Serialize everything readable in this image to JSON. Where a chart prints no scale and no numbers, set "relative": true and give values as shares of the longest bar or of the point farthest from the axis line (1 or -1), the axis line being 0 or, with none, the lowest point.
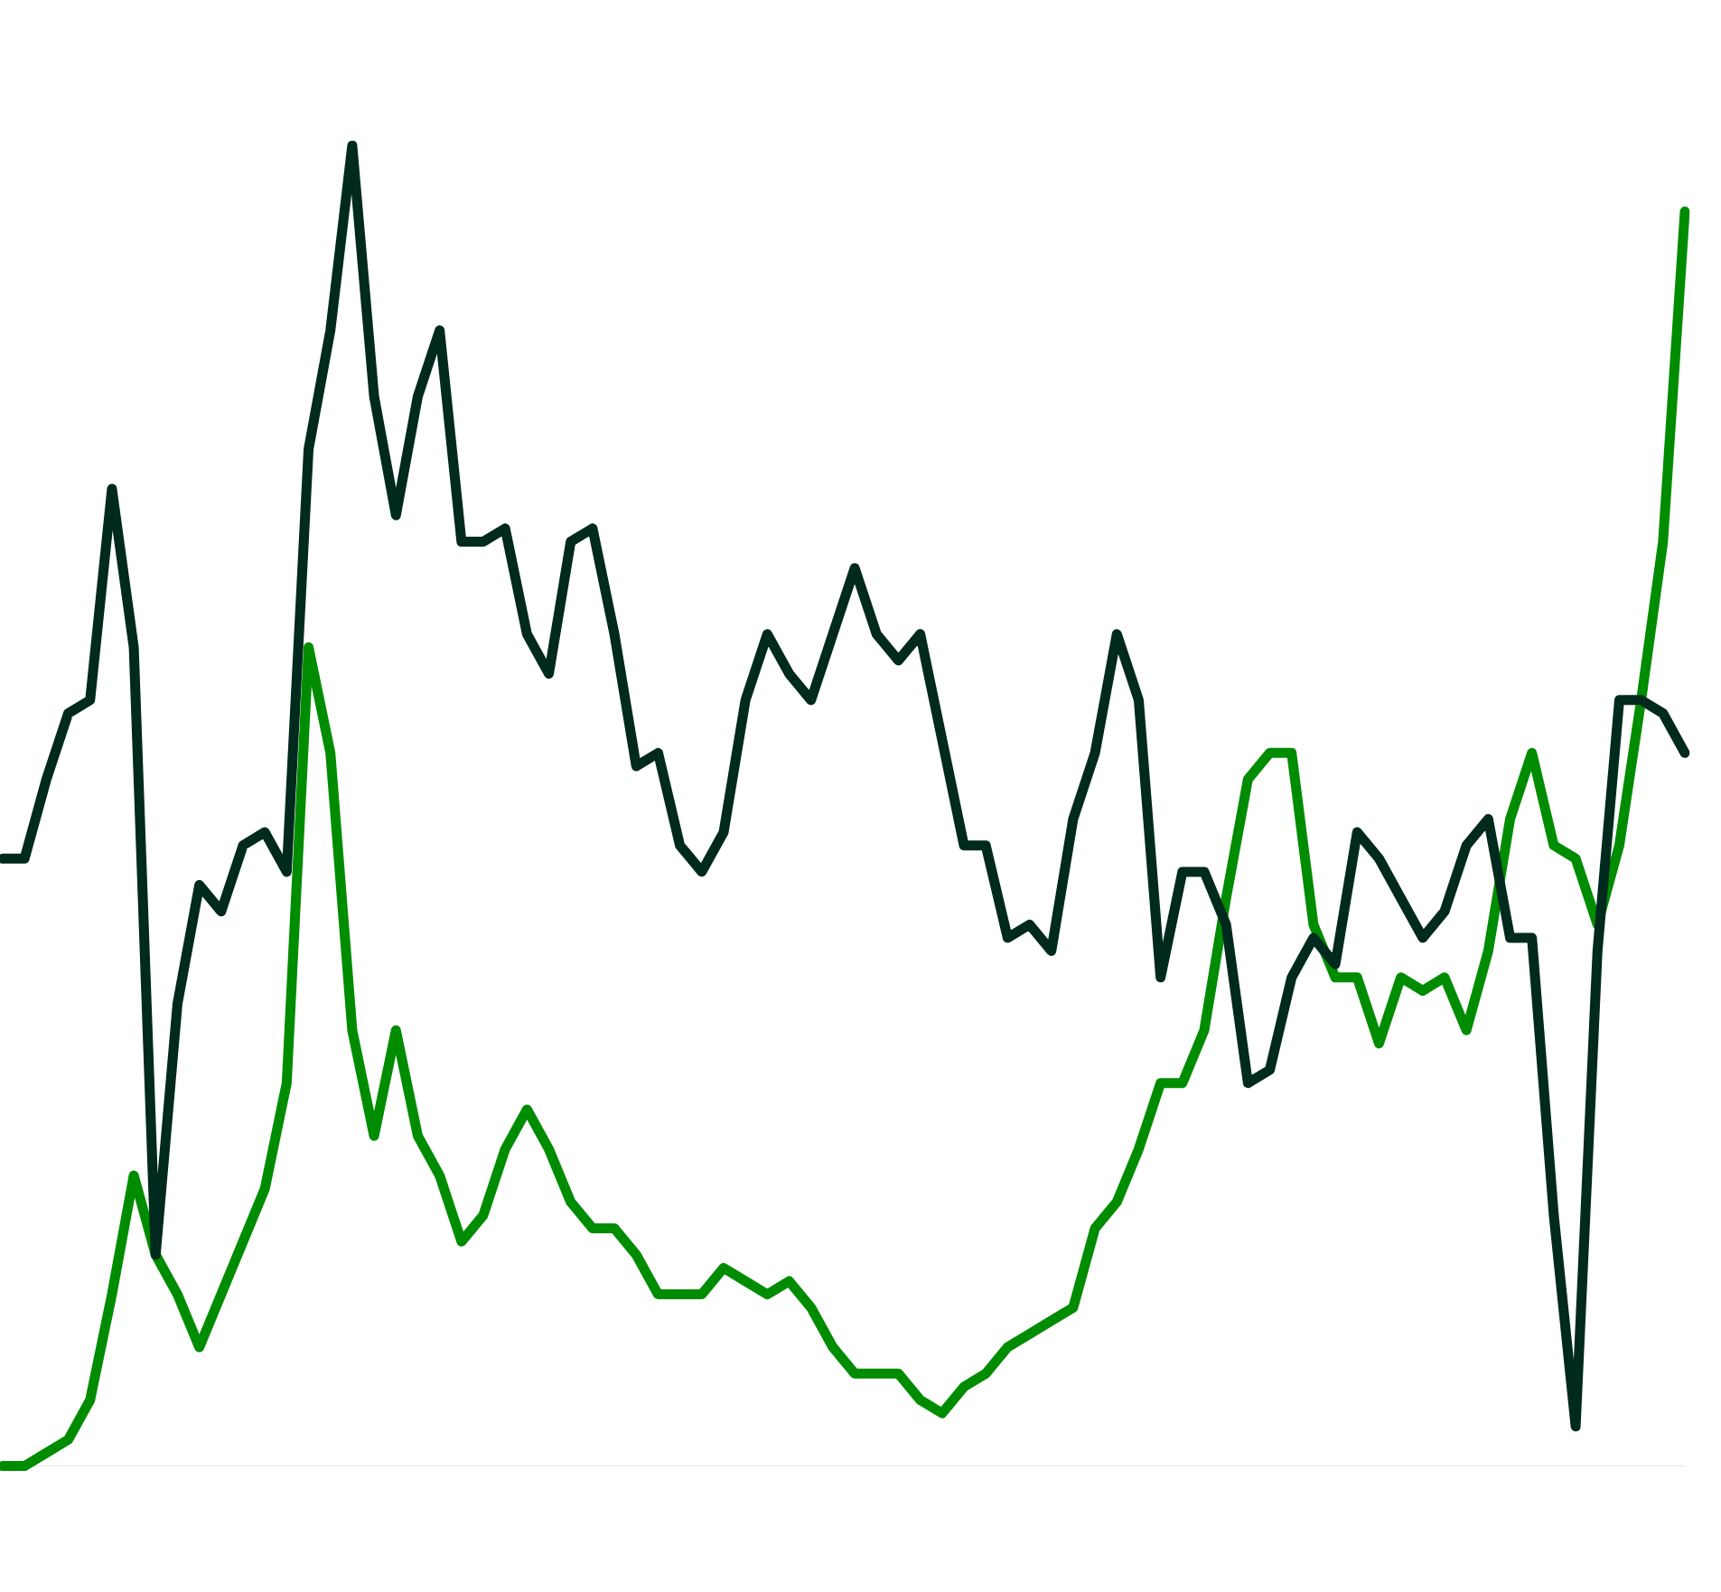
{
  "chart_data": {
    "type": "line",
    "relative": true,
    "grid": false,
    "legend": false,
    "marker": "none",
    "line_style": "solid",
    "categories": [
      null,
      null,
      null,
      null,
      null,
      null,
      null,
      null,
      null,
      null,
      null,
      null,
      null,
      null,
      null,
      null,
      null,
      null,
      null,
      null,
      null,
      null,
      null,
      null,
      null,
      null,
      null,
      null,
      null,
      null,
      null,
      null,
      null,
      null,
      null,
      null,
      null,
      null,
      null,
      null,
      null,
      null,
      null,
      null,
      null,
      null,
      null,
      null,
      null,
      null,
      null,
      null,
      null,
      null,
      null,
      null,
      null,
      null,
      null,
      null,
      null,
      null,
      null,
      null,
      null,
      null,
      null,
      null,
      null,
      null,
      null,
      null,
      null,
      null,
      null,
      null,
      null,
      null
    ],
    "series": [
      {
        "color": "#002a1e",
        "values": [
          0.46,
          0.46,
          0.52,
          0.57,
          0.58,
          0.74,
          0.62,
          0.16,
          0.35,
          0.44,
          0.42,
          0.47,
          0.48,
          0.45,
          0.77,
          0.86,
          1.0,
          0.81,
          0.72,
          0.81,
          0.86,
          0.7,
          0.7,
          0.71,
          0.63,
          0.6,
          0.7,
          0.71,
          0.63,
          0.53,
          0.54,
          0.47,
          0.45,
          0.48,
          0.58,
          0.63,
          0.6,
          0.58,
          0.63,
          0.68,
          0.63,
          0.61,
          0.63,
          0.55,
          0.47,
          0.47,
          0.4,
          0.41,
          0.39,
          0.49,
          0.54,
          0.63,
          0.58,
          0.37,
          0.45,
          0.45,
          0.41,
          0.29,
          0.3,
          0.37,
          0.4,
          0.38,
          0.48,
          0.46,
          0.43,
          0.4,
          0.42,
          0.47,
          0.49,
          0.4,
          0.4,
          0.19,
          0.03,
          0.39,
          0.58,
          0.58,
          0.57,
          0.54
        ]
      },
      {
        "color": "#008c00",
        "values": [
          0.0,
          0.0,
          0.01,
          0.02,
          0.05,
          0.13,
          0.22,
          0.16,
          0.13,
          0.09,
          0.13,
          0.17,
          0.21,
          0.29,
          0.62,
          0.54,
          0.33,
          0.25,
          0.33,
          0.25,
          0.22,
          0.17,
          0.19,
          0.24,
          0.27,
          0.24,
          0.2,
          0.18,
          0.18,
          0.16,
          0.13,
          0.13,
          0.13,
          0.15,
          0.14,
          0.13,
          0.14,
          0.12,
          0.09,
          0.07,
          0.07,
          0.07,
          0.05,
          0.04,
          0.06,
          0.07,
          0.09,
          0.1,
          0.11,
          0.12,
          0.18,
          0.2,
          0.24,
          0.29,
          0.29,
          0.33,
          0.43,
          0.52,
          0.54,
          0.54,
          0.41,
          0.37,
          0.37,
          0.32,
          0.37,
          0.36,
          0.37,
          0.33,
          0.39,
          0.49,
          0.54,
          0.47,
          0.46,
          0.41,
          0.47,
          0.58,
          0.7,
          0.95
        ]
      }
    ]
  }
}
